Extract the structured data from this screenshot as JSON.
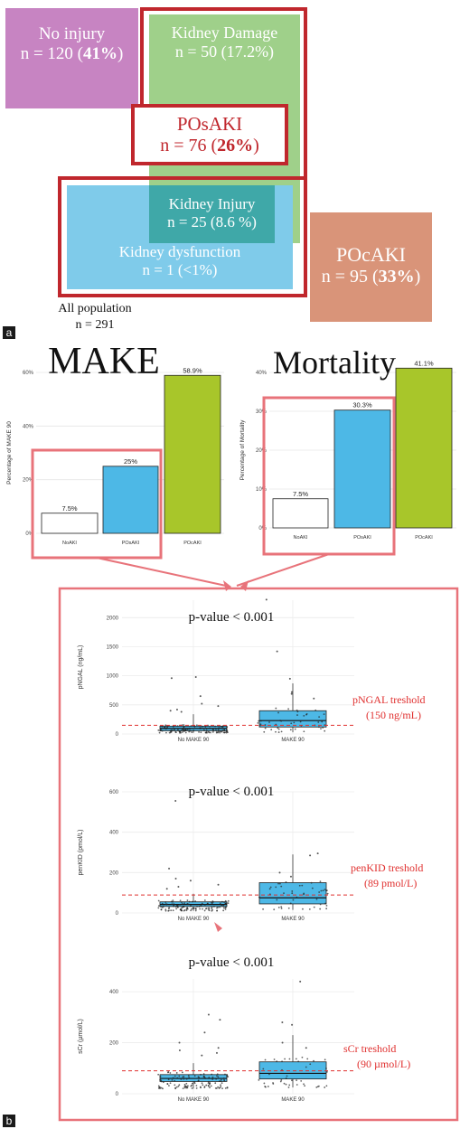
{
  "panel_a": {
    "letter": "a",
    "no_injury": {
      "label": "No injury",
      "n_text": "n = 120 (",
      "pct": "41%",
      "close": ")",
      "color": "#c784c2"
    },
    "kidney_damage": {
      "label": "Kidney Damage",
      "n_text": "n = 50 (17.2%)",
      "color": "#9fd08a"
    },
    "posaki": {
      "label": "POsAKI",
      "n_text": "n = 76 (",
      "pct": "26%",
      "close": ")",
      "color": "#c0272d"
    },
    "kidney_injury": {
      "label": "Kidney Injury",
      "n_text": "n = 25 (8.6 %)",
      "color": "#2aa3a6"
    },
    "kidney_dysfunction": {
      "label": "Kidney dysfunction",
      "n_text": "n = 1 (<1%)",
      "color": "#7fcbea"
    },
    "pocaki": {
      "label": "POcAKI",
      "n_text": "n = 95 (",
      "pct": "33%",
      "close": ")",
      "color": "#d99479"
    },
    "all_population": {
      "label": "All population",
      "n_text": "n = 291"
    }
  },
  "panel_b": {
    "letter": "b",
    "connector_color": "#e8737a"
  },
  "chart_data": [
    {
      "type": "bar",
      "title": "MAKE",
      "ylabel": "Percentage of MAKE 90",
      "categories": [
        "NoAKI",
        "POsAKI",
        "POcAKI"
      ],
      "values": [
        7.5,
        25,
        58.9
      ],
      "value_labels": [
        "7.5%",
        "25%",
        "58.9%"
      ],
      "colors": [
        "#ffffff",
        "#4db8e6",
        "#a8c62a"
      ],
      "ylim": [
        0,
        60
      ],
      "yticks": [
        0,
        20,
        40,
        60
      ],
      "ytick_labels": [
        "0%",
        "20%",
        "40%",
        "60%"
      ],
      "grid": true
    },
    {
      "type": "bar",
      "title": "Mortality",
      "ylabel": "Percentage of Mortality",
      "categories": [
        "NoAKI",
        "POsAKI",
        "POcAKI"
      ],
      "values": [
        7.5,
        30.3,
        41.1
      ],
      "value_labels": [
        "7.5%",
        "30.3%",
        "41.1%"
      ],
      "colors": [
        "#ffffff",
        "#4db8e6",
        "#a8c62a"
      ],
      "ylim": [
        0,
        40
      ],
      "yticks": [
        0,
        10,
        20,
        30,
        40
      ],
      "ytick_labels": [
        "0%",
        "10%",
        "20%",
        "30%",
        "40%"
      ],
      "grid": true
    },
    {
      "type": "box",
      "title": "p-value < 0.001",
      "ylabel": "pNGAL (ng/mL)",
      "categories": [
        "No MAKE 90",
        "MAKE 90"
      ],
      "ylim": [
        0,
        2300
      ],
      "yticks": [
        0,
        500,
        1000,
        1500,
        2000
      ],
      "boxes": [
        {
          "whisker_low": 20,
          "q1": 55,
          "median": 95,
          "q3": 135,
          "whisker_high": 340
        },
        {
          "whisker_low": 30,
          "q1": 120,
          "median": 230,
          "q3": 400,
          "whisker_high": 870
        }
      ],
      "threshold": {
        "value": 150,
        "label_line1": "pNGAL treshold",
        "label_line2": "(150 ng/mL)"
      },
      "outliers": [
        {
          "group": 0,
          "values": [
            980,
            960,
            650,
            520,
            480,
            420,
            400,
            380
          ]
        },
        {
          "group": 1,
          "values": [
            2310,
            1420,
            950,
            720,
            690,
            610
          ]
        }
      ]
    },
    {
      "type": "box",
      "title": "p-value < 0.001",
      "ylabel": "penKID (pmol/L)",
      "categories": [
        "No MAKE 90",
        "MAKE 90"
      ],
      "ylim": [
        0,
        600
      ],
      "yticks": [
        0,
        200,
        400,
        600
      ],
      "boxes": [
        {
          "whisker_low": 10,
          "q1": 32,
          "median": 42,
          "q3": 55,
          "whisker_high": 95
        },
        {
          "whisker_low": 15,
          "q1": 45,
          "median": 75,
          "q3": 150,
          "whisker_high": 290
        }
      ],
      "threshold": {
        "value": 89,
        "label_line1": "penKID treshold",
        "label_line2": "(89 pmol/L)"
      },
      "outliers": [
        {
          "group": 0,
          "values": [
            555,
            220,
            170,
            160,
            140,
            130,
            120
          ]
        },
        {
          "group": 1,
          "values": [
            295,
            285,
            200,
            180
          ]
        }
      ]
    },
    {
      "type": "box",
      "title": "p-value < 0.001",
      "ylabel": "sCr (µmol/L)",
      "categories": [
        "No MAKE 90",
        "MAKE 90"
      ],
      "ylim": [
        0,
        450
      ],
      "yticks": [
        0,
        200,
        400
      ],
      "boxes": [
        {
          "whisker_low": 20,
          "q1": 48,
          "median": 60,
          "q3": 75,
          "whisker_high": 120
        },
        {
          "whisker_low": 25,
          "q1": 58,
          "median": 80,
          "q3": 125,
          "whisker_high": 230
        }
      ],
      "threshold": {
        "value": 90,
        "label_line1": "sCr treshold",
        "label_line2": "(90 µmol/L)"
      },
      "outliers": [
        {
          "group": 0,
          "values": [
            310,
            290,
            240,
            200,
            180,
            170,
            160,
            150
          ]
        },
        {
          "group": 1,
          "values": [
            440,
            280,
            270,
            200,
            180
          ]
        }
      ]
    }
  ]
}
